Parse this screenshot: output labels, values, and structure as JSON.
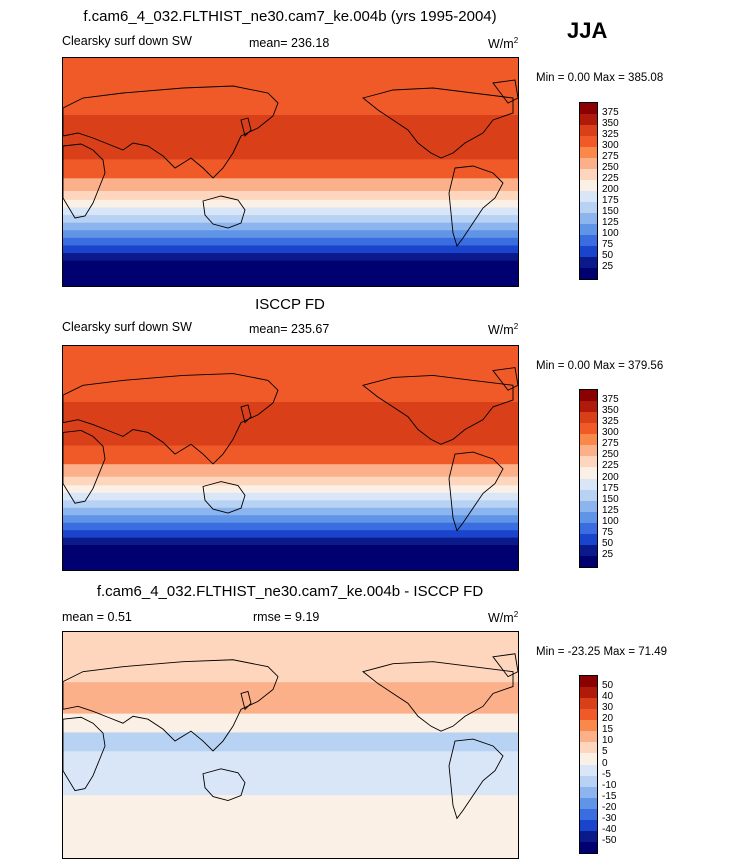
{
  "season": "JJA",
  "chart_data": [
    {
      "type": "heatmap",
      "title": "f.cam6_4_032.FLTHIST_ne30.cam7_ke.004b (yrs 1995-2004)",
      "variable": "Clearsky surf down SW",
      "stat_text": "mean= 236.18",
      "units_base": "W/m",
      "units_exp": "2",
      "minmax_text": "Min =   0.00 Max = 385.08",
      "min": 0.0,
      "max": 385.08,
      "colorbar_levels": [
        "375",
        "350",
        "325",
        "300",
        "275",
        "250",
        "225",
        "200",
        "175",
        "150",
        "125",
        "100",
        "75",
        "50",
        "25"
      ],
      "colorbar_colors": [
        "#8b0000",
        "#b01a0a",
        "#d9401a",
        "#f05a28",
        "#f9884a",
        "#fcb08a",
        "#fdd6bd",
        "#fbf0e6",
        "#d8e6f8",
        "#b8d2f4",
        "#8cb4ee",
        "#5f94e6",
        "#3a6ee0",
        "#1a44cc",
        "#0a1a8a",
        "#000070"
      ],
      "bands": [
        {
          "lat_top": 90,
          "lat_bottom": 60,
          "value": 310
        },
        {
          "lat_top": 60,
          "lat_bottom": 45,
          "value": 315
        },
        {
          "lat_top": 45,
          "lat_bottom": 10,
          "value": 325
        },
        {
          "lat_top": 10,
          "lat_bottom": -5,
          "value": 300
        },
        {
          "lat_top": -5,
          "lat_bottom": -15,
          "value": 270
        },
        {
          "lat_top": -15,
          "lat_bottom": -22,
          "value": 245
        },
        {
          "lat_top": -22,
          "lat_bottom": -28,
          "value": 215
        },
        {
          "lat_top": -28,
          "lat_bottom": -34,
          "value": 185
        },
        {
          "lat_top": -34,
          "lat_bottom": -40,
          "value": 160
        },
        {
          "lat_top": -40,
          "lat_bottom": -46,
          "value": 130
        },
        {
          "lat_top": -46,
          "lat_bottom": -52,
          "value": 105
        },
        {
          "lat_top": -52,
          "lat_bottom": -58,
          "value": 80
        },
        {
          "lat_top": -58,
          "lat_bottom": -64,
          "value": 55
        },
        {
          "lat_top": -64,
          "lat_bottom": -70,
          "value": 35
        },
        {
          "lat_top": -70,
          "lat_bottom": -90,
          "value": 10
        }
      ]
    },
    {
      "type": "heatmap",
      "title": "ISCCP FD",
      "variable": "Clearsky surf down SW",
      "stat_text": "mean= 235.67",
      "units_base": "W/m",
      "units_exp": "2",
      "minmax_text": "Min =   0.00 Max = 379.56",
      "min": 0.0,
      "max": 379.56,
      "colorbar_levels": [
        "375",
        "350",
        "325",
        "300",
        "275",
        "250",
        "225",
        "200",
        "175",
        "150",
        "125",
        "100",
        "75",
        "50",
        "25"
      ],
      "colorbar_colors": [
        "#8b0000",
        "#b01a0a",
        "#d9401a",
        "#f05a28",
        "#f9884a",
        "#fcb08a",
        "#fdd6bd",
        "#fbf0e6",
        "#d8e6f8",
        "#b8d2f4",
        "#8cb4ee",
        "#5f94e6",
        "#3a6ee0",
        "#1a44cc",
        "#0a1a8a",
        "#000070"
      ],
      "bands": [
        {
          "lat_top": 90,
          "lat_bottom": 60,
          "value": 305
        },
        {
          "lat_top": 60,
          "lat_bottom": 45,
          "value": 315
        },
        {
          "lat_top": 45,
          "lat_bottom": 10,
          "value": 325
        },
        {
          "lat_top": 10,
          "lat_bottom": -5,
          "value": 300
        },
        {
          "lat_top": -5,
          "lat_bottom": -15,
          "value": 270
        },
        {
          "lat_top": -15,
          "lat_bottom": -22,
          "value": 245
        },
        {
          "lat_top": -22,
          "lat_bottom": -28,
          "value": 215
        },
        {
          "lat_top": -28,
          "lat_bottom": -34,
          "value": 185
        },
        {
          "lat_top": -34,
          "lat_bottom": -40,
          "value": 160
        },
        {
          "lat_top": -40,
          "lat_bottom": -46,
          "value": 130
        },
        {
          "lat_top": -46,
          "lat_bottom": -52,
          "value": 105
        },
        {
          "lat_top": -52,
          "lat_bottom": -58,
          "value": 80
        },
        {
          "lat_top": -58,
          "lat_bottom": -64,
          "value": 55
        },
        {
          "lat_top": -64,
          "lat_bottom": -70,
          "value": 35
        },
        {
          "lat_top": -70,
          "lat_bottom": -90,
          "value": 10
        }
      ]
    },
    {
      "type": "heatmap",
      "title": "f.cam6_4_032.FLTHIST_ne30.cam7_ke.004b - ISCCP FD",
      "variable": "",
      "stat_text": "mean =   0.51",
      "stat2_text": "rmse =   9.19",
      "units_base": "W/m",
      "units_exp": "2",
      "minmax_text": "Min = -23.25 Max =  71.49",
      "min": -23.25,
      "max": 71.49,
      "colorbar_levels": [
        "50",
        "40",
        "30",
        "20",
        "15",
        "10",
        "5",
        "0",
        "-5",
        "-10",
        "-15",
        "-20",
        "-30",
        "-40",
        "-50"
      ],
      "colorbar_colors": [
        "#8b0000",
        "#b01a0a",
        "#d9401a",
        "#f05a28",
        "#f9884a",
        "#fcb08a",
        "#fdd6bd",
        "#fbf0e6",
        "#d8e6f8",
        "#b8d2f4",
        "#8cb4ee",
        "#5f94e6",
        "#3a6ee0",
        "#1a44cc",
        "#0a1a8a",
        "#000070"
      ],
      "bands": [
        {
          "lat_top": 90,
          "lat_bottom": 50,
          "value": 8
        },
        {
          "lat_top": 50,
          "lat_bottom": 25,
          "value": 12
        },
        {
          "lat_top": 25,
          "lat_bottom": 10,
          "value": 3
        },
        {
          "lat_top": 10,
          "lat_bottom": -5,
          "value": -8
        },
        {
          "lat_top": -5,
          "lat_bottom": -20,
          "value": -4
        },
        {
          "lat_top": -20,
          "lat_bottom": -40,
          "value": -3
        },
        {
          "lat_top": -40,
          "lat_bottom": -90,
          "value": 1
        }
      ]
    }
  ]
}
